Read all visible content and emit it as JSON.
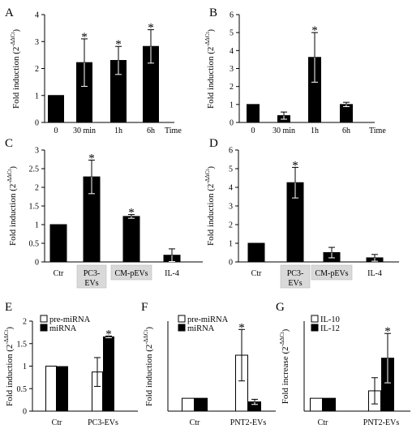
{
  "colors": {
    "black_bar": "#000000",
    "white_bar": "#ffffff",
    "axis": "#000000",
    "highlight": "#d9d9d9"
  },
  "chart_data": [
    {
      "panel": "A",
      "type": "bar",
      "categories": [
        "0",
        "30 min",
        "1h",
        "6h"
      ],
      "x_extra_label": "Time",
      "ylabel": "Fold induction (2^-ΔΔCt)",
      "ylabel_main": "Fold induction (2",
      "ylabel_sup": "-ΔΔCt",
      "ylabel_close": ")",
      "ylim": [
        0,
        4
      ],
      "yticks": [
        0,
        1,
        2,
        3,
        4
      ],
      "ytick_labels": [
        "0",
        "1",
        "2",
        "3",
        "4"
      ],
      "series": [
        {
          "values": [
            1.0,
            2.22,
            2.3,
            2.82
          ],
          "errors": [
            0,
            0.88,
            0.52,
            0.62
          ],
          "significant": [
            false,
            true,
            true,
            true
          ]
        }
      ]
    },
    {
      "panel": "B",
      "type": "bar",
      "categories": [
        "0",
        "30 min",
        "1h",
        "6h"
      ],
      "x_extra_label": "Time",
      "ylabel": "Fold induction (2^-ΔΔCt)",
      "ylabel_main": "Fold induction (2",
      "ylabel_sup": "-ΔΔCt",
      "ylabel_close": ")",
      "ylim": [
        0,
        6
      ],
      "yticks": [
        0,
        1,
        2,
        3,
        4,
        5,
        6
      ],
      "ytick_labels": [
        "0",
        "1",
        "2",
        "3",
        "4",
        "5",
        "6"
      ],
      "series": [
        {
          "values": [
            1.0,
            0.38,
            3.62,
            1.0
          ],
          "errors": [
            0,
            0.2,
            1.38,
            0.12
          ],
          "significant": [
            false,
            false,
            true,
            false
          ]
        }
      ]
    },
    {
      "panel": "C",
      "type": "bar",
      "categories": [
        "Ctr",
        "PC3-\nEVs",
        "CM-pEVs",
        "IL-4"
      ],
      "highlighted_categories": [
        1,
        2
      ],
      "ylabel": "Fold induction (2^-ΔΔCt)",
      "ylabel_main": "Fold induction (2",
      "ylabel_sup": "-ΔΔCt",
      "ylabel_close": ")",
      "ylim": [
        0,
        3
      ],
      "yticks": [
        0,
        0.5,
        1,
        1.5,
        2,
        2.5,
        3
      ],
      "ytick_labels": [
        "0",
        "0.5",
        "1",
        "1.5",
        "2",
        "2.5",
        "3"
      ],
      "series": [
        {
          "values": [
            1.0,
            2.28,
            1.22,
            0.18
          ],
          "errors": [
            0,
            0.45,
            0.05,
            0.17
          ],
          "significant": [
            false,
            true,
            true,
            false
          ]
        }
      ]
    },
    {
      "panel": "D",
      "type": "bar",
      "categories": [
        "Ctr",
        "PC3-\nEVs",
        "CM-pEVs",
        "IL-4"
      ],
      "highlighted_categories": [
        1,
        2
      ],
      "ylabel": "Fold induction (2^-ΔΔCt)",
      "ylabel_main": "Fold induction (2",
      "ylabel_sup": "-ΔΔCt",
      "ylabel_close": ")",
      "ylim": [
        0,
        6
      ],
      "yticks": [
        0,
        1,
        2,
        3,
        4,
        5,
        6
      ],
      "ytick_labels": [
        "0",
        "1",
        "2",
        "3",
        "4",
        "5",
        "6"
      ],
      "series": [
        {
          "values": [
            1.0,
            4.25,
            0.5,
            0.22
          ],
          "errors": [
            0,
            0.82,
            0.28,
            0.18
          ],
          "significant": [
            false,
            true,
            false,
            false
          ]
        }
      ]
    },
    {
      "panel": "E",
      "type": "bar",
      "categories": [
        "Ctr",
        "PC3-EVs"
      ],
      "ylabel": "Fold induction (2^-ΔΔCt)",
      "ylabel_main": "Fold induction (2",
      "ylabel_sup": "-ΔΔCt",
      "ylabel_close": ")",
      "ylim": [
        0,
        2
      ],
      "yticks": [
        0,
        0.5,
        1,
        1.5,
        2
      ],
      "ytick_labels": [
        "0",
        "0.5",
        "1",
        "1.5",
        "2"
      ],
      "series": [
        {
          "name": "pre-miRNA",
          "color": "#ffffff",
          "values": [
            1.0,
            0.87
          ],
          "errors": [
            0,
            0.32
          ],
          "significant": [
            false,
            false
          ]
        },
        {
          "name": "miRNA",
          "color": "#000000",
          "values": [
            0.99,
            1.65
          ],
          "errors": [
            0,
            0.02
          ],
          "significant": [
            false,
            true
          ]
        }
      ]
    },
    {
      "panel": "F",
      "type": "bar",
      "categories": [
        "Ctr",
        "PNT2-EVs"
      ],
      "ylabel": "Fold induction (2^-ΔΔCt)",
      "ylabel_main": "Fold induction (2",
      "ylabel_sup": "-ΔΔCt",
      "ylabel_close": ")",
      "ylim": [
        0,
        7
      ],
      "yticks": [],
      "ytick_labels": [],
      "series": [
        {
          "name": "pre-miRNA",
          "color": "#ffffff",
          "values": [
            1.0,
            4.35
          ],
          "errors": [
            0,
            2.0
          ],
          "significant": [
            false,
            true
          ]
        },
        {
          "name": "miRNA",
          "color": "#000000",
          "values": [
            1.0,
            0.72
          ],
          "errors": [
            0,
            0.2
          ],
          "significant": [
            false,
            false
          ]
        }
      ]
    },
    {
      "panel": "G",
      "type": "bar",
      "categories": [
        "Ctr",
        "PNT2-EVs"
      ],
      "ylabel": "Fold increase (2^-ΔΔCt)",
      "ylabel_main": "Fold increase (2",
      "ylabel_sup": "-ΔΔCt",
      "ylabel_close": ")",
      "ylim": [
        0,
        7
      ],
      "yticks": [],
      "ytick_labels": [],
      "series": [
        {
          "name": "IL-10",
          "color": "#ffffff",
          "values": [
            1.0,
            1.58
          ],
          "errors": [
            0,
            1.02
          ],
          "significant": [
            false,
            false
          ]
        },
        {
          "name": "IL-12",
          "color": "#000000",
          "values": [
            1.0,
            4.12
          ],
          "errors": [
            0,
            1.92
          ],
          "significant": [
            false,
            true
          ]
        }
      ]
    }
  ]
}
